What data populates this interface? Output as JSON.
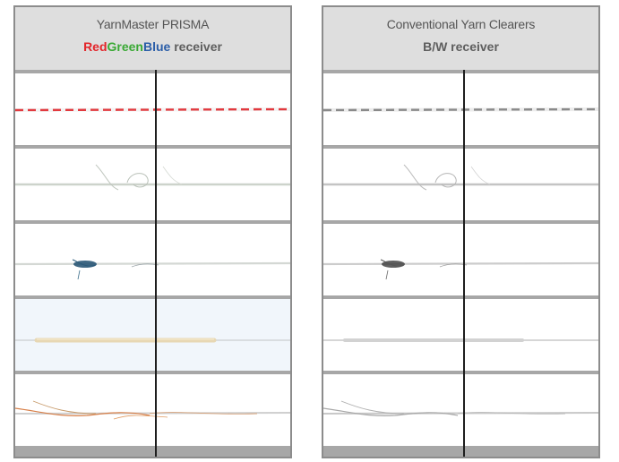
{
  "panels": {
    "left": {
      "title": "YarnMaster PRISMA",
      "subtitle": {
        "red": "Red",
        "green": "Green",
        "blue": "Blue",
        "rest": " receiver"
      }
    },
    "right": {
      "title": "Conventional Yarn Clearers",
      "subtitle": "B/W receiver"
    }
  },
  "colors": {
    "red": "#e3252a",
    "green": "#3aa935",
    "blue": "#2b5ea8",
    "frame": "#8c8c8c",
    "header": "#dedede",
    "divider": "#1e1e1e"
  },
  "samples": [
    {
      "name": "red-white-twisted-yarn",
      "left_yarn_color": "#e23a3f",
      "right_yarn_color": "#8a8a8a"
    },
    {
      "name": "white-yarn-with-loop",
      "left_yarn_color": "#c9cfc6",
      "right_yarn_color": "#bdbdbd"
    },
    {
      "name": "dark-blue-fiber-contamination",
      "left_yarn_color": "#1f4d6e",
      "right_yarn_color": "#3a3a3a"
    },
    {
      "name": "cream-colored-section",
      "left_yarn_color": "#e7d7b3",
      "right_yarn_color": "#d2d2d2"
    },
    {
      "name": "orange-fiber-contamination",
      "left_yarn_color": "#d8804a",
      "right_yarn_color": "#a8a8a8"
    }
  ]
}
